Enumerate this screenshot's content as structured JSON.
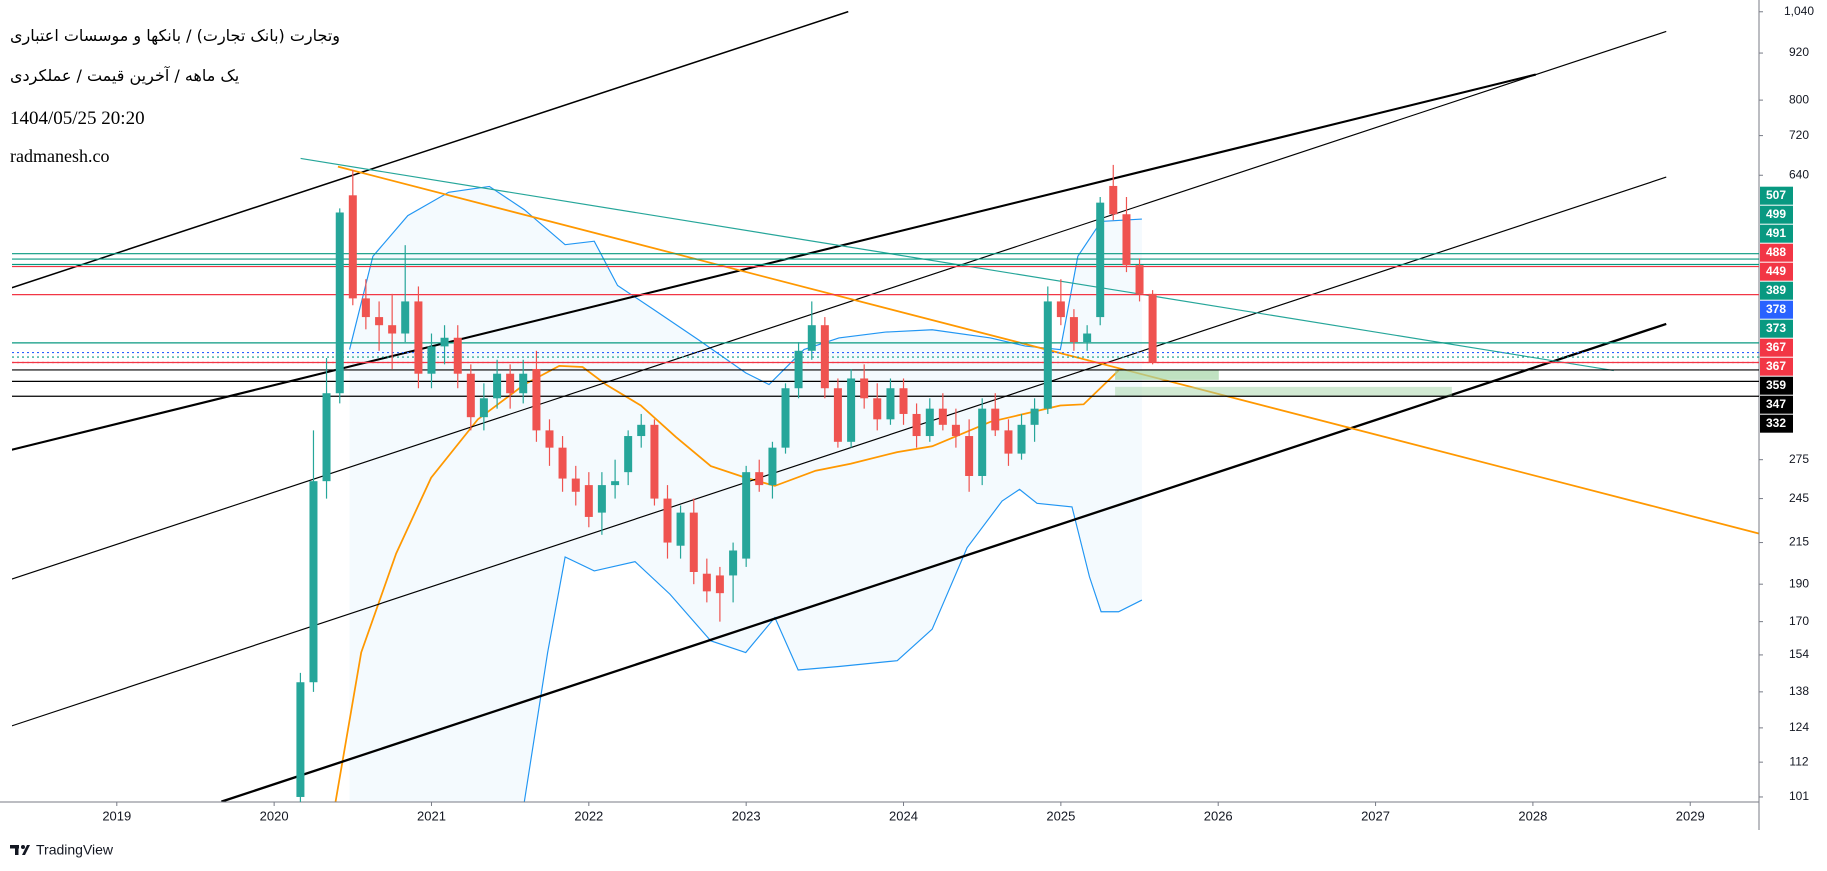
{
  "chart_data": {
    "type": "candlestick",
    "title": "وتجارت (بانک تجارت) / بانکها و موسسات اعتباری",
    "subtitle": "یک ماهه / آخرین قیمت / عملکردی",
    "date": "1404/05/25 20:20",
    "watermark": "radmanesh.co",
    "brand": "TradingView",
    "log_scale": true,
    "up_color": "#26a69a",
    "down_color": "#ef5350",
    "xlim": [
      2018.334,
      2029.437
    ],
    "xticks": [
      2019,
      2020,
      2021,
      2022,
      2023,
      2024,
      2025,
      2026,
      2027,
      2028,
      2029
    ],
    "ylim": [
      99.5,
      1077
    ],
    "yticks": [
      {
        "value": 1040,
        "label": "1,040"
      },
      920,
      800,
      720,
      640,
      275,
      245,
      215,
      190,
      170,
      154,
      138,
      124,
      112,
      101
    ],
    "x": [
      2020.167,
      2020.25,
      2020.333,
      2020.417,
      2020.5,
      2020.583,
      2020.667,
      2020.75,
      2020.833,
      2020.917,
      2021.0,
      2021.083,
      2021.167,
      2021.25,
      2021.333,
      2021.417,
      2021.5,
      2021.583,
      2021.667,
      2021.75,
      2021.833,
      2021.917,
      2022.0,
      2022.083,
      2022.167,
      2022.25,
      2022.333,
      2022.417,
      2022.5,
      2022.583,
      2022.667,
      2022.75,
      2022.833,
      2022.917,
      2023.0,
      2023.083,
      2023.167,
      2023.25,
      2023.333,
      2023.417,
      2023.5,
      2023.583,
      2023.667,
      2023.75,
      2023.833,
      2023.917,
      2024.0,
      2024.083,
      2024.167,
      2024.25,
      2024.333,
      2024.417,
      2024.5,
      2024.583,
      2024.667,
      2024.75,
      2024.833,
      2024.917,
      2025.0,
      2025.083,
      2025.167,
      2025.25,
      2025.333,
      2025.417,
      2025.5,
      2025.583
    ],
    "open": [
      101,
      142,
      258,
      335,
      603,
      444,
      420,
      410,
      400,
      440,
      355,
      385,
      395,
      355,
      312,
      330,
      355,
      335,
      360,
      300,
      285,
      260,
      255,
      235,
      255,
      265,
      295,
      305,
      245,
      213,
      235,
      196,
      195,
      195,
      205,
      265,
      255,
      285,
      340,
      380,
      410,
      340,
      290,
      350,
      330,
      310,
      340,
      315,
      295,
      320,
      305,
      295,
      262,
      320,
      300,
      280,
      305,
      320,
      440,
      420,
      390,
      420,
      620,
      570,
      490,
      450
    ],
    "high": [
      146,
      300,
      372,
      580,
      650,
      470,
      440,
      450,
      520,
      460,
      400,
      410,
      410,
      365,
      345,
      370,
      365,
      370,
      380,
      310,
      295,
      270,
      265,
      265,
      275,
      300,
      315,
      310,
      255,
      240,
      245,
      205,
      200,
      215,
      270,
      275,
      290,
      345,
      390,
      440,
      420,
      350,
      360,
      365,
      345,
      350,
      350,
      325,
      330,
      335,
      320,
      310,
      330,
      335,
      310,
      315,
      330,
      460,
      470,
      430,
      410,
      600,
      660,
      600,
      500,
      455
    ],
    "low": [
      96,
      138,
      245,
      325,
      435,
      405,
      380,
      360,
      390,
      340,
      340,
      365,
      340,
      300,
      300,
      320,
      320,
      325,
      290,
      270,
      250,
      240,
      225,
      220,
      245,
      255,
      285,
      240,
      205,
      205,
      190,
      180,
      170,
      180,
      200,
      250,
      245,
      280,
      330,
      370,
      330,
      285,
      285,
      320,
      300,
      305,
      305,
      285,
      290,
      300,
      285,
      250,
      255,
      295,
      270,
      275,
      290,
      315,
      410,
      380,
      380,
      410,
      560,
      480,
      440,
      365
    ],
    "close": [
      142,
      258,
      335,
      573,
      444,
      420,
      410,
      400,
      440,
      355,
      385,
      395,
      355,
      312,
      330,
      355,
      335,
      355,
      300,
      285,
      260,
      250,
      232,
      255,
      258,
      295,
      305,
      245,
      215,
      235,
      197,
      186,
      185,
      210,
      265,
      255,
      285,
      340,
      380,
      410,
      340,
      290,
      350,
      330,
      310,
      340,
      315,
      295,
      320,
      305,
      295,
      262,
      320,
      300,
      280,
      305,
      320,
      440,
      420,
      390,
      400,
      590,
      570,
      490,
      450,
      367
    ],
    "levels": [
      {
        "value": 507,
        "color": "#089981",
        "style": "solid"
      },
      {
        "value": 499,
        "color": "#089981",
        "style": "solid"
      },
      {
        "value": 491,
        "color": "#089981",
        "style": "solid"
      },
      {
        "value": 488,
        "color": "#f23645",
        "style": "solid"
      },
      {
        "value": 449,
        "color": "#f23645",
        "style": "solid"
      },
      {
        "value": 389,
        "color": "#089981",
        "style": "solid"
      },
      {
        "value": 378,
        "color": "#2962ff",
        "style": "dotted"
      },
      {
        "value": 373,
        "color": "#089981",
        "style": "dotted"
      },
      {
        "value": 367,
        "color": "#f23645",
        "style": "dotted"
      },
      {
        "value": 367,
        "color": "#f23645",
        "style": "solid"
      },
      {
        "value": 359,
        "color": "#000000",
        "style": "solid"
      },
      {
        "value": 347,
        "color": "#000000",
        "style": "solid"
      },
      {
        "value": 332,
        "color": "#000000",
        "style": "solid"
      }
    ]
  }
}
